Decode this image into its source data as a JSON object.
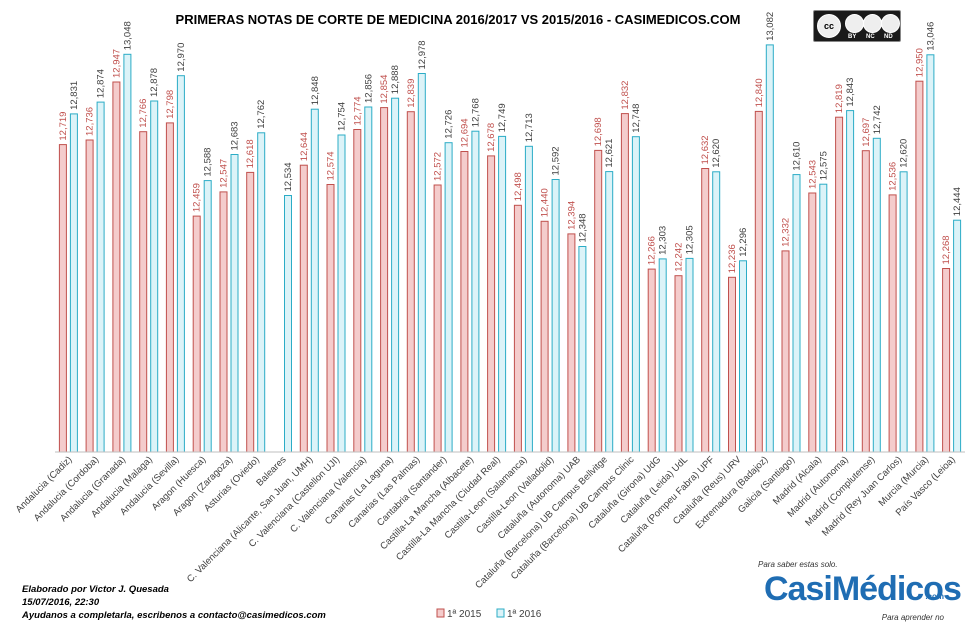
{
  "chart_data": {
    "type": "bar",
    "title": "PRIMERAS NOTAS DE CORTE DE MEDICINA 2016/2017  VS 2015/2016  - CASIMEDICOS.COM",
    "categories": [
      "Andalucia (Cadiz)",
      "Andalucia (Cordoba)",
      "Andalucia (Granada)",
      "Andalucia (Malaga)",
      "Andalucia (Sevilla)",
      "Aragon (Huesca)",
      "Aragon (Zaragoza)",
      "Asturias (Oviedo)",
      "Baleares",
      "C. Valenciana (Alicante, San Juan, UMH)",
      "C. Valenciana (Castellon UJI)",
      "C. Valenciana (Valencia)",
      "Canarias (La Laguna)",
      "Canarias (Las Palmas)",
      "Cantabria (Santander)",
      "Castilla-La Mancha (Albacete)",
      "Castilla-La Mancha (Ciudad Real)",
      "Castilla-Leon (Salamanca)",
      "Castilla-Leon (Valladolid)",
      "Cataluña (Autonoma) UAB",
      "Cataluña (Barcelona) UB Campus Bellvitge",
      "Cataluña (Barcelona) UB Campus Clinic",
      "Cataluña (Girona) UdG",
      "Cataluña (Leida) UdL",
      "Cataluña (Pompeu Fabra) UPF",
      "Cataluña (Reus) URV",
      "Extremadura (Badajoz)",
      "Galicia (Santiago)",
      "Madrid (Alcala)",
      "Madrid (Autonoma)",
      "Madrid (Complutense)",
      "Madrid (Rey Juan Carlos)",
      "Murcia (Murcia)",
      "País Vasco (Leioa)"
    ],
    "series": [
      {
        "name": "1ª 2015",
        "values": [
          12.719,
          12.736,
          12.947,
          12.766,
          12.798,
          12.459,
          12.547,
          12.618,
          null,
          12.644,
          12.574,
          12.774,
          12.854,
          12.839,
          12.572,
          12.694,
          12.678,
          12.498,
          12.44,
          12.394,
          12.698,
          12.832,
          12.266,
          12.242,
          12.632,
          12.236,
          12.84,
          12.332,
          12.543,
          12.819,
          12.697,
          12.536,
          12.95,
          12.268
        ],
        "labels": [
          "12,719",
          "12,736",
          "12,947",
          "12,766",
          "12,798",
          "12,459",
          "12,547",
          "12,618",
          "",
          "12,644",
          "12,574",
          "12,774",
          "12,854",
          "12,839",
          "12,572",
          "12,694",
          "12,678",
          "12,498",
          "12,440",
          "12,394",
          "12,698",
          "12,832",
          "12,266",
          "12,242",
          "12,632",
          "12,236",
          "12,840",
          "12,332",
          "12,543",
          "12,819",
          "12,697",
          "12,536",
          "12,950",
          "12,268"
        ],
        "color": "#f4cccc",
        "stroke": "#c0504d"
      },
      {
        "name": "1ª 2016",
        "values": [
          12.831,
          12.874,
          13.048,
          12.878,
          12.97,
          12.588,
          12.683,
          12.762,
          12.534,
          12.848,
          12.754,
          12.856,
          12.888,
          12.978,
          12.726,
          12.768,
          12.749,
          12.713,
          12.592,
          12.348,
          12.621,
          12.748,
          12.303,
          12.305,
          12.62,
          12.296,
          13.082,
          12.61,
          12.575,
          12.843,
          12.742,
          12.62,
          13.046,
          12.444
        ],
        "labels": [
          "12,831",
          "12,874",
          "13,048",
          "12,878",
          "12,970",
          "12,588",
          "12,683",
          "12,762",
          "12,534",
          "12,848",
          "12,754",
          "12,856",
          "12,888",
          "12,978",
          "12,726",
          "12,768",
          "12,749",
          "12,713",
          "12,592",
          "12,348",
          "12,621",
          "12,748",
          "12,303",
          "12,305",
          "12,620",
          "12,296",
          "13,082",
          "12,610",
          "12,575",
          "12,843",
          "12,742",
          "12,620",
          "13,046",
          "12,444"
        ],
        "color": "#dcf3f8",
        "stroke": "#2bacc6"
      }
    ],
    "ylim": [
      11.6,
      13.1
    ],
    "grid": false,
    "legend": "bottom-center"
  },
  "credits": {
    "line1": "Elaborado por Victor J. Quesada",
    "line2": "15/07/2016, 22:30",
    "line3": "Ayudanos a completarla, escribenos a contacto@casimedicos.com"
  },
  "license_badge": {
    "labels": [
      "cc",
      "BY",
      "NC",
      "ND"
    ]
  },
  "logo": {
    "tagline_top": "Para saber estas solo.",
    "wordmark": "CasiMédicos",
    "domain": ".com",
    "tagline_bottom": "Para aprender no"
  }
}
